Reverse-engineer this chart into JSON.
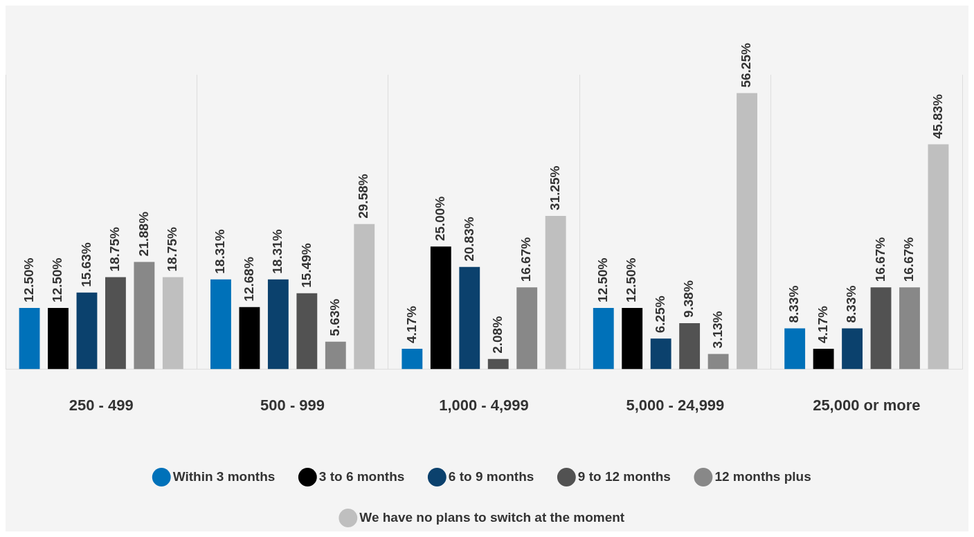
{
  "chart_data": {
    "type": "bar",
    "categories": [
      "250 - 499",
      "500 - 999",
      "1,000 - 4,999",
      "5,000 - 24,999",
      "25,000 or more"
    ],
    "series": [
      {
        "name": "Within 3 months",
        "color": "#0071b9",
        "values": [
          12.5,
          18.31,
          4.17,
          12.5,
          8.33
        ],
        "value_labels": [
          "12.50%",
          "18.31%",
          "4.17%",
          "12.50%",
          "8.33%"
        ]
      },
      {
        "name": "3 to 6 months",
        "color": "#000000",
        "values": [
          12.5,
          12.68,
          25.0,
          12.5,
          4.17
        ],
        "value_labels": [
          "12.50%",
          "12.68%",
          "25.00%",
          "12.50%",
          "4.17%"
        ]
      },
      {
        "name": "6 to 9 months",
        "color": "#0b416d",
        "values": [
          15.63,
          18.31,
          20.83,
          6.25,
          8.33
        ],
        "value_labels": [
          "15.63%",
          "18.31%",
          "20.83%",
          "6.25%",
          "8.33%"
        ]
      },
      {
        "name": "9 to 12 months",
        "color": "#525252",
        "values": [
          18.75,
          15.49,
          2.08,
          9.38,
          16.67
        ],
        "value_labels": [
          "18.75%",
          "15.49%",
          "2.08%",
          "9.38%",
          "16.67%"
        ]
      },
      {
        "name": "12 months plus",
        "color": "#888888",
        "values": [
          21.88,
          5.63,
          16.67,
          3.13,
          16.67
        ],
        "value_labels": [
          "21.88%",
          "5.63%",
          "16.67%",
          "3.13%",
          "16.67%"
        ]
      },
      {
        "name": "We have no plans to switch at the moment",
        "color": "#bfbfbf",
        "values": [
          18.75,
          29.58,
          31.25,
          56.25,
          45.83
        ],
        "value_labels": [
          "18.75%",
          "29.58%",
          "31.25%",
          "56.25%",
          "45.83%"
        ]
      }
    ],
    "grid": "x",
    "legend": "bottom"
  }
}
